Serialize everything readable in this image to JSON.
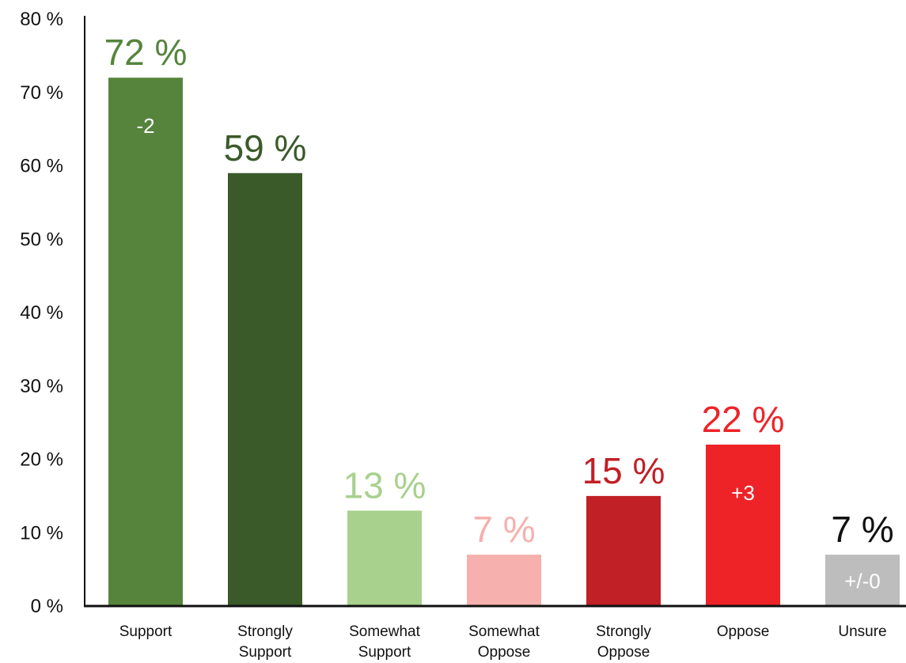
{
  "chart_data": {
    "type": "bar",
    "categories": [
      [
        "Support"
      ],
      [
        "Strongly",
        "Support"
      ],
      [
        "Somewhat",
        "Support"
      ],
      [
        "Somewhat",
        "Oppose"
      ],
      [
        "Strongly",
        "Oppose"
      ],
      [
        "Oppose"
      ],
      [
        "Unsure"
      ]
    ],
    "values": [
      72,
      59,
      13,
      7,
      15,
      22,
      7
    ],
    "value_labels": [
      "72 %",
      "59 %",
      "13 %",
      "7 %",
      "15 %",
      "22 %",
      "7 %"
    ],
    "change_labels": [
      "-2",
      "",
      "",
      "",
      "",
      "+3",
      "+/-0"
    ],
    "bar_colors": [
      "#56843c",
      "#3b5a2a",
      "#a8d18d",
      "#f6b0ad",
      "#c02026",
      "#ee2328",
      "#bdbdbd"
    ],
    "value_label_colors": [
      "#56843c",
      "#3b5a2a",
      "#a8d18d",
      "#f6b0ad",
      "#c02026",
      "#ee2328",
      "#111111"
    ],
    "y_ticks": [
      0,
      10,
      20,
      30,
      40,
      50,
      60,
      70,
      80
    ],
    "y_tick_labels": [
      "0 %",
      "10 %",
      "20 %",
      "30 %",
      "40 %",
      "50 %",
      "60 %",
      "70 %",
      "80 %"
    ],
    "ylim": [
      0,
      80
    ],
    "grid": false,
    "title": "",
    "xlabel": "",
    "ylabel": ""
  }
}
